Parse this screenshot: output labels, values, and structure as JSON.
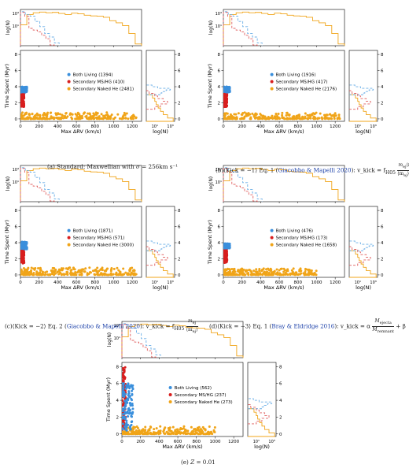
{
  "colors": {
    "both_living": "#3a8fdc",
    "secondary_mshg": "#d81e1e",
    "naked_he": "#f0a418",
    "hist_gold": "#f0a418",
    "hist_blue": "#6aaee6",
    "hist_red": "#e06060"
  },
  "chart_data": [
    {
      "id": "a",
      "type": "scatter",
      "xlabel": "Max ΔRV (km/s)",
      "ylabel": "Time Spent (Myr)",
      "top_ylabel": "log(N)",
      "side_xlabel": "log(N)",
      "xlim": [
        0,
        1300
      ],
      "ylim": [
        -0.3,
        8.5
      ],
      "xticks": [
        "0",
        "200",
        "400",
        "600",
        "800",
        "1000",
        "1200"
      ],
      "yticks": [
        "0",
        "2",
        "4",
        "6",
        "8"
      ],
      "top_yticks": [
        "10¹",
        "10³"
      ],
      "side_xticks": [
        "10¹",
        "10³"
      ],
      "series": [
        {
          "name": "Both Living (1394)",
          "key": "both_living",
          "x_range": [
            5,
            70
          ],
          "y_range": [
            3.3,
            4.0
          ]
        },
        {
          "name": "Secondary MS/HG (410)",
          "key": "secondary_mshg",
          "x_range": [
            2,
            40
          ],
          "y_range": [
            1.5,
            3.2
          ]
        },
        {
          "name": "Secondary Naked He (2481)",
          "key": "naked_he",
          "x_range": [
            0,
            1250
          ],
          "y_range": [
            0.0,
            0.8
          ]
        }
      ],
      "caption": [
        "(a) Standard: Maxwellian with ",
        "σ",
        " = 256km s⁻¹"
      ]
    },
    {
      "id": "b",
      "type": "scatter",
      "xlabel": "Max ΔRV (km/s)",
      "ylabel": "Time Spent (Myr)",
      "top_ylabel": "log(N)",
      "side_xlabel": "log(N)",
      "xlim": [
        0,
        1300
      ],
      "ylim": [
        -0.3,
        8.5
      ],
      "xticks": [
        "0",
        "200",
        "400",
        "600",
        "800",
        "1000",
        "1200"
      ],
      "yticks": [
        "0",
        "2",
        "4",
        "6",
        "8"
      ],
      "top_yticks": [
        "10¹",
        "10³"
      ],
      "side_xticks": [
        "10¹",
        "10³"
      ],
      "series": [
        {
          "name": "Both Living (1916)",
          "key": "both_living",
          "x_range": [
            5,
            70
          ],
          "y_range": [
            3.3,
            4.0
          ]
        },
        {
          "name": "Secondary MS/HG (417)",
          "key": "secondary_mshg",
          "x_range": [
            2,
            40
          ],
          "y_range": [
            1.5,
            3.2
          ]
        },
        {
          "name": "Secondary Naked He (2176)",
          "key": "naked_he",
          "x_range": [
            0,
            1250
          ],
          "y_range": [
            0.0,
            0.8
          ]
        }
      ],
      "caption": [
        "(b)⟨Kick = −1⟩ Eq. 1 (",
        "Giacobbo & Mapelli 2020",
        "): v_kick = f",
        "H05",
        "m",
        "ej",
        "⟨m",
        "NS",
        "⟩",
        "⟨m",
        "ej",
        "⟩m",
        "rem"
      ]
    },
    {
      "id": "c",
      "type": "scatter",
      "xlabel": "Max ΔRV (km/s)",
      "ylabel": "Time Spent (Myr)",
      "top_ylabel": "log(N)",
      "side_xlabel": "log(N)",
      "xlim": [
        0,
        1300
      ],
      "ylim": [
        -0.3,
        8.5
      ],
      "xticks": [
        "0",
        "200",
        "400",
        "600",
        "800",
        "1000",
        "1200"
      ],
      "yticks": [
        "0",
        "2",
        "4",
        "6",
        "8"
      ],
      "top_yticks": [
        "10¹",
        "10³"
      ],
      "side_xticks": [
        "10¹",
        "10³"
      ],
      "series": [
        {
          "name": "Both Living (1871)",
          "key": "both_living",
          "x_range": [
            5,
            70
          ],
          "y_range": [
            3.2,
            4.1
          ]
        },
        {
          "name": "Secondary MS/HG (571)",
          "key": "secondary_mshg",
          "x_range": [
            2,
            40
          ],
          "y_range": [
            1.4,
            3.3
          ]
        },
        {
          "name": "Secondary Naked He (3000)",
          "key": "naked_he",
          "x_range": [
            0,
            1250
          ],
          "y_range": [
            0.0,
            0.9
          ]
        }
      ],
      "caption": [
        "(c)⟨Kick = −2⟩ Eq. 2 (",
        "Giacobbo & Mapelli 2020",
        "): v_kick = f",
        "H05",
        "m",
        "ej",
        "⟨m",
        "ej",
        "⟩"
      ]
    },
    {
      "id": "d",
      "type": "scatter",
      "xlabel": "Max ΔRV (km/s)",
      "ylabel": "Time Spent (Myr)",
      "top_ylabel": "log(N)",
      "side_xlabel": "log(N)",
      "xlim": [
        0,
        1300
      ],
      "ylim": [
        -0.3,
        8.5
      ],
      "xticks": [
        "0",
        "200",
        "400",
        "600",
        "800",
        "1000",
        "1200"
      ],
      "yticks": [
        "0",
        "2",
        "4",
        "6",
        "8"
      ],
      "top_yticks": [
        "10¹",
        "10³"
      ],
      "side_xticks": [
        "10¹",
        "10³"
      ],
      "series": [
        {
          "name": "Both Living (476)",
          "key": "both_living",
          "x_range": [
            5,
            70
          ],
          "y_range": [
            3.3,
            3.9
          ]
        },
        {
          "name": "Secondary MS/HG (173)",
          "key": "secondary_mshg",
          "x_range": [
            2,
            40
          ],
          "y_range": [
            1.5,
            3.2
          ]
        },
        {
          "name": "Secondary Naked He (1658)",
          "key": "naked_he",
          "x_range": [
            0,
            1000
          ],
          "y_range": [
            0.0,
            0.8
          ]
        }
      ],
      "caption": [
        "(d)⟨Kick = −3⟩ Eq. 1 (",
        "Bray & Eldridge 2016",
        "): v_kick = α",
        "M",
        "ejecta",
        "M",
        "remnant",
        " + β"
      ]
    },
    {
      "id": "e",
      "type": "scatter",
      "xlabel": "Max ΔRV (km/s)",
      "ylabel": "Time Spent (Myr)",
      "top_ylabel": "log(N)",
      "side_xlabel": "log(N)",
      "xlim": [
        0,
        1300
      ],
      "ylim": [
        -0.3,
        8.5
      ],
      "xticks": [
        "0",
        "200",
        "400",
        "600",
        "800",
        "1000",
        "1200"
      ],
      "yticks": [
        "0",
        "2",
        "4",
        "6",
        "8"
      ],
      "top_yticks": [
        "10¹",
        "10³"
      ],
      "side_xticks": [
        "10¹",
        "10³"
      ],
      "series": [
        {
          "name": "Both Living (562)",
          "key": "both_living",
          "x_range": [
            5,
            120
          ],
          "y_range": [
            0.4,
            6.0
          ]
        },
        {
          "name": "Secondary MS/HG (237)",
          "key": "secondary_mshg",
          "x_range": [
            2,
            40
          ],
          "y_range": [
            0.5,
            8.0
          ]
        },
        {
          "name": "Secondary Naked He (273)",
          "key": "naked_he",
          "x_range": [
            0,
            1000
          ],
          "y_range": [
            0.0,
            0.9
          ]
        }
      ],
      "caption": [
        "(e) ",
        "Z",
        " = 0.01"
      ]
    }
  ]
}
